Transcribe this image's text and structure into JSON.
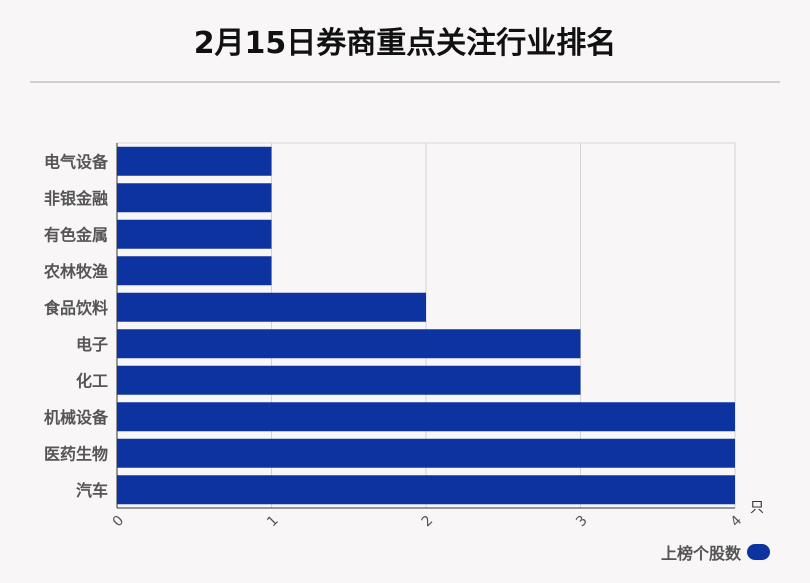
{
  "title": "2月15日券商重点关注行业排名",
  "legend": {
    "label": "上榜个股数",
    "color": "#0d33a0"
  },
  "chart_data": {
    "type": "bar",
    "orientation": "horizontal",
    "title": "2月15日券商重点关注行业排名",
    "categories": [
      "电气设备",
      "非银金融",
      "有色金属",
      "农林牧渔",
      "食品饮料",
      "电子",
      "化工",
      "机械设备",
      "医药生物",
      "汽车"
    ],
    "series": [
      {
        "name": "上榜个股数",
        "values": [
          1,
          1,
          1,
          1,
          2,
          3,
          3,
          4,
          4,
          4
        ]
      }
    ],
    "xlim": [
      0,
      4
    ],
    "xticks": [
      "0",
      "1",
      "2",
      "3",
      "4"
    ],
    "xunit": "只",
    "grid": true,
    "legend_position": "bottom-right",
    "bar_color": "#0d33a0"
  }
}
